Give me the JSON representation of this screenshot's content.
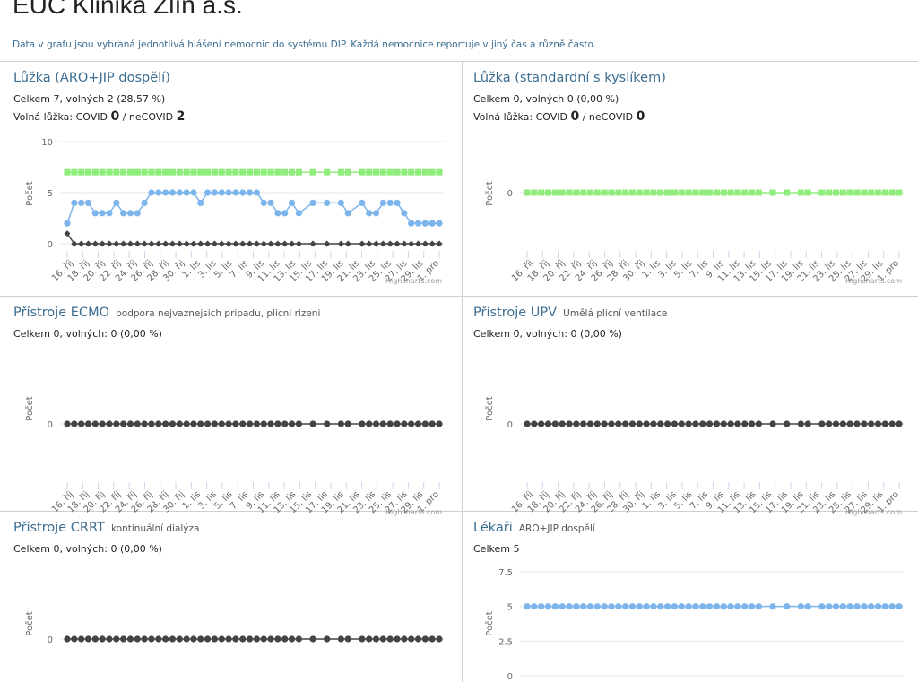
{
  "page": {
    "title": "EUC Klinika Zlín a.s.",
    "intro": "Data v grafu jsou vybraná jednotlivá hlášení nemocnic do systému DIP. Každá nemocnice reportuje v jiný čas a různě často."
  },
  "credit": "Highcharts.com",
  "colors": {
    "accent": "#3c6e91",
    "blue": "#7cb5ec",
    "green": "#90ed7d",
    "dark": "#434348"
  },
  "panels": [
    {
      "name": "Lůžka (ARO+JIP dospělí)",
      "subtitle": "",
      "line1": "Celkem 7, volných 2 (28,57 %)",
      "line2": {
        "prefix": "Volná lůžka: COVID ",
        "covid": "0",
        "mid": " / neCOVID ",
        "noncovid": "2"
      }
    },
    {
      "name": "Lůžka (standardní s kyslíkem)",
      "subtitle": "",
      "line1": "Celkem 0, volných 0 (0,00 %)",
      "line2": {
        "prefix": "Volná lůžka: COVID ",
        "covid": "0",
        "mid": " / neCOVID ",
        "noncovid": "0"
      }
    },
    {
      "name": "Přístroje ECMO",
      "subtitle": "podpora nejvaznejsich pripadu, plicni rizeni",
      "line1": "Celkem 0, volných: 0 (0,00 %)"
    },
    {
      "name": "Přístroje UPV",
      "subtitle": "Umělá plicní ventilace",
      "line1": "Celkem 0, volných: 0 (0,00 %)"
    },
    {
      "name": "Přístroje CRRT",
      "subtitle": "kontinuální dialýza",
      "line1": "Celkem 0, volných: 0 (0,00 %)"
    },
    {
      "name": "Lékaři",
      "subtitle": "ARO+JIP dospělí",
      "line1": "Celkem 5"
    }
  ],
  "chart_data": [
    {
      "type": "line",
      "ylabel": "Počet",
      "ylim": [
        0,
        10
      ],
      "yticks": [
        0,
        5,
        10
      ],
      "xlabels": [
        "16. říj",
        "18. říj",
        "20. říj",
        "22. říj",
        "24. říj",
        "26. říj",
        "28. říj",
        "30. říj",
        "1. lis",
        "3. lis",
        "5. lis",
        "7. lis",
        "9. lis",
        "11. lis",
        "13. lis",
        "15. lis",
        "17. lis",
        "19. lis",
        "21. lis",
        "23. lis",
        "25. lis",
        "27. lis",
        "29. lis",
        "1. pro"
      ],
      "x": [
        0,
        1,
        2,
        3,
        4,
        5,
        6,
        7,
        8,
        9,
        10,
        11,
        12,
        13,
        14,
        15,
        16,
        17,
        18,
        19,
        20,
        21,
        22,
        23,
        24,
        25,
        26,
        27,
        28,
        29,
        30,
        31,
        32,
        33,
        35,
        37,
        39,
        40,
        42,
        43,
        44,
        45,
        46,
        47,
        48,
        49,
        50,
        51,
        52,
        53
      ],
      "series": [
        {
          "color": "#90ed7d",
          "marker": "square",
          "values": [
            7,
            7,
            7,
            7,
            7,
            7,
            7,
            7,
            7,
            7,
            7,
            7,
            7,
            7,
            7,
            7,
            7,
            7,
            7,
            7,
            7,
            7,
            7,
            7,
            7,
            7,
            7,
            7,
            7,
            7,
            7,
            7,
            7,
            7,
            7,
            7,
            7,
            7,
            7,
            7,
            7,
            7,
            7,
            7,
            7,
            7,
            7,
            7,
            7,
            7
          ]
        },
        {
          "color": "#7cb5ec",
          "marker": "circle",
          "values": [
            2,
            4,
            4,
            4,
            3,
            3,
            3,
            4,
            3,
            3,
            3,
            4,
            5,
            5,
            5,
            5,
            5,
            5,
            5,
            4,
            5,
            5,
            5,
            5,
            5,
            5,
            5,
            5,
            4,
            4,
            3,
            3,
            4,
            3,
            4,
            4,
            4,
            3,
            4,
            3,
            3,
            4,
            4,
            4,
            3,
            2,
            2,
            2,
            2,
            2
          ]
        },
        {
          "color": "#434348",
          "marker": "diamond",
          "values": [
            1,
            0,
            0,
            0,
            0,
            0,
            0,
            0,
            0,
            0,
            0,
            0,
            0,
            0,
            0,
            0,
            0,
            0,
            0,
            0,
            0,
            0,
            0,
            0,
            0,
            0,
            0,
            0,
            0,
            0,
            0,
            0,
            0,
            0,
            0,
            0,
            0,
            0,
            0,
            0,
            0,
            0,
            0,
            0,
            0,
            0,
            0,
            0,
            0,
            0
          ]
        }
      ]
    },
    {
      "type": "line",
      "ylabel": "Počet",
      "ylim": [
        -1,
        1
      ],
      "yticks": [
        0
      ],
      "xlabels": [
        "16. říj",
        "18. říj",
        "20. říj",
        "22. říj",
        "24. říj",
        "26. říj",
        "28. říj",
        "30. říj",
        "1. lis",
        "3. lis",
        "5. lis",
        "7. lis",
        "9. lis",
        "11. lis",
        "13. lis",
        "15. lis",
        "17. lis",
        "19. lis",
        "21. lis",
        "23. lis",
        "25. lis",
        "27. lis",
        "29. lis",
        "1. pro"
      ],
      "x": [
        0,
        1,
        2,
        3,
        4,
        5,
        6,
        7,
        8,
        9,
        10,
        11,
        12,
        13,
        14,
        15,
        16,
        17,
        18,
        19,
        20,
        21,
        22,
        23,
        24,
        25,
        26,
        27,
        28,
        29,
        30,
        31,
        32,
        33,
        35,
        37,
        39,
        40,
        42,
        43,
        44,
        45,
        46,
        47,
        48,
        49,
        50,
        51,
        52,
        53
      ],
      "series": [
        {
          "color": "#90ed7d",
          "marker": "square",
          "values": [
            0,
            0,
            0,
            0,
            0,
            0,
            0,
            0,
            0,
            0,
            0,
            0,
            0,
            0,
            0,
            0,
            0,
            0,
            0,
            0,
            0,
            0,
            0,
            0,
            0,
            0,
            0,
            0,
            0,
            0,
            0,
            0,
            0,
            0,
            0,
            0,
            0,
            0,
            0,
            0,
            0,
            0,
            0,
            0,
            0,
            0,
            0,
            0,
            0,
            0
          ]
        }
      ]
    },
    {
      "type": "line",
      "ylabel": "Počet",
      "ylim": [
        -1,
        1
      ],
      "yticks": [
        0
      ],
      "xlabels": [
        "16. říj",
        "18. říj",
        "20. říj",
        "22. říj",
        "24. říj",
        "26. říj",
        "28. říj",
        "30. říj",
        "1. lis",
        "3. lis",
        "5. lis",
        "7. lis",
        "9. lis",
        "11. lis",
        "13. lis",
        "15. lis",
        "17. lis",
        "19. lis",
        "21. lis",
        "23. lis",
        "25. lis",
        "27. lis",
        "29. lis",
        "1. pro"
      ],
      "x": [
        0,
        1,
        2,
        3,
        4,
        5,
        6,
        7,
        8,
        9,
        10,
        11,
        12,
        13,
        14,
        15,
        16,
        17,
        18,
        19,
        20,
        21,
        22,
        23,
        24,
        25,
        26,
        27,
        28,
        29,
        30,
        31,
        32,
        33,
        35,
        37,
        39,
        40,
        42,
        43,
        44,
        45,
        46,
        47,
        48,
        49,
        50,
        51,
        52,
        53
      ],
      "series": [
        {
          "color": "#434348",
          "marker": "circle",
          "values": [
            0,
            0,
            0,
            0,
            0,
            0,
            0,
            0,
            0,
            0,
            0,
            0,
            0,
            0,
            0,
            0,
            0,
            0,
            0,
            0,
            0,
            0,
            0,
            0,
            0,
            0,
            0,
            0,
            0,
            0,
            0,
            0,
            0,
            0,
            0,
            0,
            0,
            0,
            0,
            0,
            0,
            0,
            0,
            0,
            0,
            0,
            0,
            0,
            0,
            0
          ]
        }
      ]
    },
    {
      "type": "line",
      "ylabel": "Počet",
      "ylim": [
        -1,
        1
      ],
      "yticks": [
        0
      ],
      "xlabels": [
        "16. říj",
        "18. říj",
        "20. říj",
        "22. říj",
        "24. říj",
        "26. říj",
        "28. říj",
        "30. říj",
        "1. lis",
        "3. lis",
        "5. lis",
        "7. lis",
        "9. lis",
        "11. lis",
        "13. lis",
        "15. lis",
        "17. lis",
        "19. lis",
        "21. lis",
        "23. lis",
        "25. lis",
        "27. lis",
        "29. lis",
        "1. pro"
      ],
      "x": [
        0,
        1,
        2,
        3,
        4,
        5,
        6,
        7,
        8,
        9,
        10,
        11,
        12,
        13,
        14,
        15,
        16,
        17,
        18,
        19,
        20,
        21,
        22,
        23,
        24,
        25,
        26,
        27,
        28,
        29,
        30,
        31,
        32,
        33,
        35,
        37,
        39,
        40,
        42,
        43,
        44,
        45,
        46,
        47,
        48,
        49,
        50,
        51,
        52,
        53
      ],
      "series": [
        {
          "color": "#434348",
          "marker": "circle",
          "values": [
            0,
            0,
            0,
            0,
            0,
            0,
            0,
            0,
            0,
            0,
            0,
            0,
            0,
            0,
            0,
            0,
            0,
            0,
            0,
            0,
            0,
            0,
            0,
            0,
            0,
            0,
            0,
            0,
            0,
            0,
            0,
            0,
            0,
            0,
            0,
            0,
            0,
            0,
            0,
            0,
            0,
            0,
            0,
            0,
            0,
            0,
            0,
            0,
            0,
            0
          ]
        }
      ]
    },
    {
      "type": "line",
      "ylabel": "Počet",
      "ylim": [
        -1,
        1
      ],
      "yticks": [
        0
      ],
      "xlabels": [],
      "x": [
        0,
        1,
        2,
        3,
        4,
        5,
        6,
        7,
        8,
        9,
        10,
        11,
        12,
        13,
        14,
        15,
        16,
        17,
        18,
        19,
        20,
        21,
        22,
        23,
        24,
        25,
        26,
        27,
        28,
        29,
        30,
        31,
        32,
        33,
        35,
        37,
        39,
        40,
        42,
        43,
        44,
        45,
        46,
        47,
        48,
        49,
        50,
        51,
        52,
        53
      ],
      "series": [
        {
          "color": "#434348",
          "marker": "circle",
          "values": [
            0,
            0,
            0,
            0,
            0,
            0,
            0,
            0,
            0,
            0,
            0,
            0,
            0,
            0,
            0,
            0,
            0,
            0,
            0,
            0,
            0,
            0,
            0,
            0,
            0,
            0,
            0,
            0,
            0,
            0,
            0,
            0,
            0,
            0,
            0,
            0,
            0,
            0,
            0,
            0,
            0,
            0,
            0,
            0,
            0,
            0,
            0,
            0,
            0,
            0
          ]
        }
      ]
    },
    {
      "type": "line",
      "ylabel": "Počet",
      "ylim": [
        0,
        7.5
      ],
      "yticks": [
        0,
        2.5,
        5,
        7.5
      ],
      "xlabels": [],
      "x": [
        0,
        1,
        2,
        3,
        4,
        5,
        6,
        7,
        8,
        9,
        10,
        11,
        12,
        13,
        14,
        15,
        16,
        17,
        18,
        19,
        20,
        21,
        22,
        23,
        24,
        25,
        26,
        27,
        28,
        29,
        30,
        31,
        32,
        33,
        35,
        37,
        39,
        40,
        42,
        43,
        44,
        45,
        46,
        47,
        48,
        49,
        50,
        51,
        52,
        53
      ],
      "series": [
        {
          "color": "#7cb5ec",
          "marker": "circle",
          "values": [
            5,
            5,
            5,
            5,
            5,
            5,
            5,
            5,
            5,
            5,
            5,
            5,
            5,
            5,
            5,
            5,
            5,
            5,
            5,
            5,
            5,
            5,
            5,
            5,
            5,
            5,
            5,
            5,
            5,
            5,
            5,
            5,
            5,
            5,
            5,
            5,
            5,
            5,
            5,
            5,
            5,
            5,
            5,
            5,
            5,
            5,
            5,
            5,
            5,
            5
          ]
        }
      ]
    }
  ]
}
